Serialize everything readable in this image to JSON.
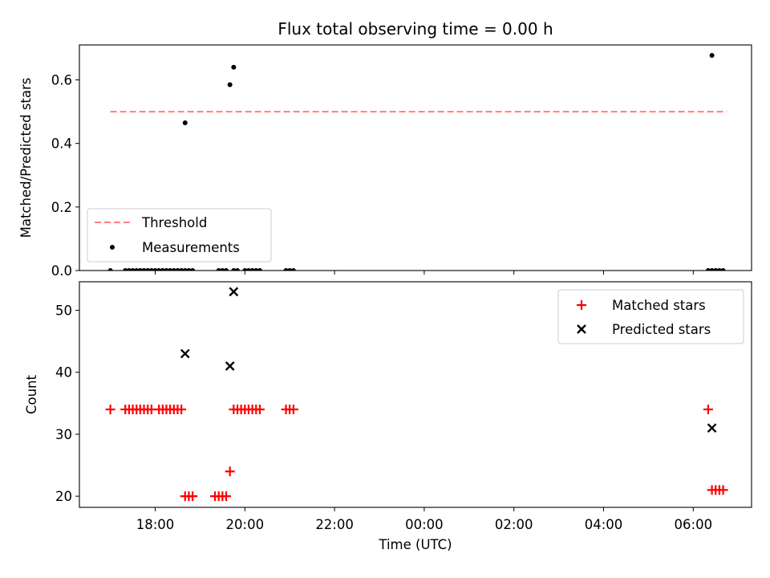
{
  "title": "Flux total observing time = 0.00 h",
  "chart_data": [
    {
      "type": "scatter",
      "ylabel": "Matched/Predicted stars",
      "ylim": [
        0.0,
        0.71
      ],
      "yticks": [
        0.0,
        0.2,
        0.4,
        0.6
      ],
      "ytick_labels": [
        "0.0",
        "0.2",
        "0.4",
        "0.6"
      ],
      "threshold": {
        "name": "Threshold",
        "value": 0.5,
        "x_range": [
          "17:00",
          "06:45"
        ],
        "color": "#ff7f7f"
      },
      "series": [
        {
          "name": "Measurements",
          "color": "#000000",
          "points": [
            [
              "17:00",
              0.0
            ],
            [
              "17:20",
              0.0
            ],
            [
              "17:25",
              0.0
            ],
            [
              "17:30",
              0.0
            ],
            [
              "17:35",
              0.0
            ],
            [
              "17:40",
              0.0
            ],
            [
              "17:45",
              0.0
            ],
            [
              "17:50",
              0.0
            ],
            [
              "17:55",
              0.0
            ],
            [
              "18:00",
              0.0
            ],
            [
              "18:05",
              0.0
            ],
            [
              "18:10",
              0.0
            ],
            [
              "18:15",
              0.0
            ],
            [
              "18:20",
              0.0
            ],
            [
              "18:25",
              0.0
            ],
            [
              "18:30",
              0.0
            ],
            [
              "18:35",
              0.0
            ],
            [
              "18:40",
              0.0
            ],
            [
              "18:45",
              0.0
            ],
            [
              "18:50",
              0.0
            ],
            [
              "19:25",
              0.0
            ],
            [
              "19:30",
              0.0
            ],
            [
              "19:35",
              0.0
            ],
            [
              "19:45",
              0.0
            ],
            [
              "19:50",
              0.0
            ],
            [
              "20:00",
              0.0
            ],
            [
              "20:05",
              0.0
            ],
            [
              "20:10",
              0.0
            ],
            [
              "20:15",
              0.0
            ],
            [
              "20:20",
              0.0
            ],
            [
              "20:55",
              0.0
            ],
            [
              "21:00",
              0.0
            ],
            [
              "21:05",
              0.0
            ],
            [
              "06:20",
              0.0
            ],
            [
              "06:25",
              0.0
            ],
            [
              "06:30",
              0.0
            ],
            [
              "06:35",
              0.0
            ],
            [
              "06:40",
              0.0
            ],
            [
              "18:40",
              0.465
            ],
            [
              "19:40",
              0.585
            ],
            [
              "19:45",
              0.64
            ],
            [
              "06:25",
              0.677
            ]
          ]
        }
      ],
      "legend": {
        "entries": [
          "Threshold",
          "Measurements"
        ],
        "placement": "lower-left"
      }
    },
    {
      "type": "scatter",
      "xlabel": "Time (UTC)",
      "ylabel": "Count",
      "ylim": [
        18.2,
        54.6
      ],
      "yticks": [
        20,
        30,
        40,
        50
      ],
      "ytick_labels": [
        "20",
        "30",
        "40",
        "50"
      ],
      "xticks": [
        "18:00",
        "20:00",
        "22:00",
        "00:00",
        "02:00",
        "04:00",
        "06:00"
      ],
      "series": [
        {
          "name": "Matched stars",
          "color": "#ff0000",
          "points": [
            [
              "17:00",
              34
            ],
            [
              "17:20",
              34
            ],
            [
              "17:25",
              34
            ],
            [
              "17:30",
              34
            ],
            [
              "17:35",
              34
            ],
            [
              "17:40",
              34
            ],
            [
              "17:45",
              34
            ],
            [
              "17:50",
              34
            ],
            [
              "17:55",
              34
            ],
            [
              "18:05",
              34
            ],
            [
              "18:10",
              34
            ],
            [
              "18:15",
              34
            ],
            [
              "18:20",
              34
            ],
            [
              "18:25",
              34
            ],
            [
              "18:30",
              34
            ],
            [
              "18:35",
              34
            ],
            [
              "18:40",
              20
            ],
            [
              "18:45",
              20
            ],
            [
              "18:50",
              20
            ],
            [
              "19:20",
              20
            ],
            [
              "19:25",
              20
            ],
            [
              "19:30",
              20
            ],
            [
              "19:35",
              20
            ],
            [
              "19:40",
              24
            ],
            [
              "19:45",
              34
            ],
            [
              "19:50",
              34
            ],
            [
              "19:55",
              34
            ],
            [
              "20:00",
              34
            ],
            [
              "20:05",
              34
            ],
            [
              "20:10",
              34
            ],
            [
              "20:15",
              34
            ],
            [
              "20:20",
              34
            ],
            [
              "20:55",
              34
            ],
            [
              "21:00",
              34
            ],
            [
              "21:05",
              34
            ],
            [
              "06:20",
              34
            ],
            [
              "06:25",
              21
            ],
            [
              "06:30",
              21
            ],
            [
              "06:35",
              21
            ],
            [
              "06:40",
              21
            ]
          ]
        },
        {
          "name": "Predicted stars",
          "color": "#000000",
          "points": [
            [
              "18:40",
              43
            ],
            [
              "19:40",
              41
            ],
            [
              "19:45",
              53
            ],
            [
              "06:25",
              31
            ]
          ]
        }
      ],
      "legend": {
        "entries": [
          "Matched stars",
          "Predicted stars"
        ],
        "placement": "upper-right"
      }
    }
  ]
}
